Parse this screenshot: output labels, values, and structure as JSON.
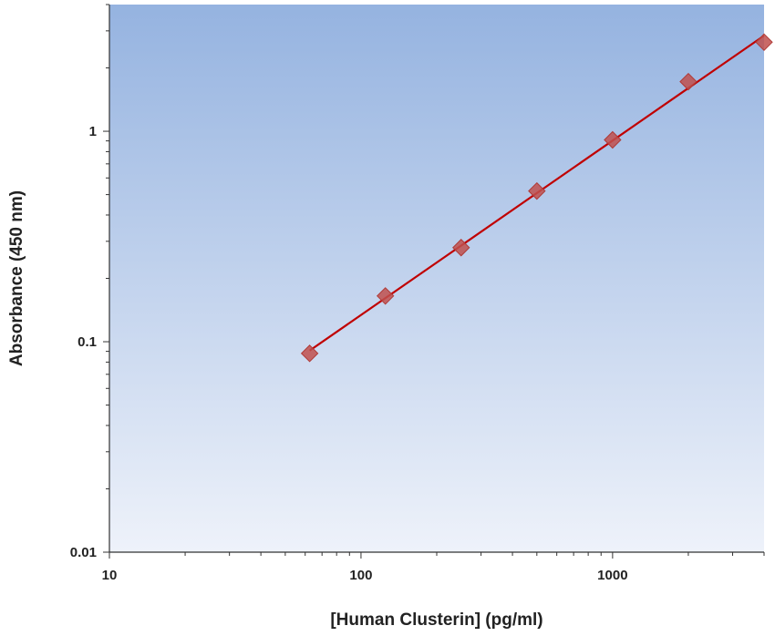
{
  "chart_data": {
    "type": "scatter",
    "title": "",
    "xlabel": "[Human Clusterin] (pg/ml)",
    "ylabel": "Absorbance (450 nm)",
    "x_scale": "log",
    "y_scale": "log",
    "xlim": [
      10,
      4000
    ],
    "ylim": [
      0.01,
      4
    ],
    "x_ticks": [
      10,
      100,
      1000
    ],
    "x_tick_labels": [
      "10",
      "100",
      "1000"
    ],
    "y_ticks": [
      0.01,
      0.1,
      1
    ],
    "y_tick_labels": [
      "0.01",
      "0.1",
      "1"
    ],
    "grid": false,
    "legend": "none",
    "series": [
      {
        "marker": "diamond",
        "color": "#c0504d",
        "x": [
          62.5,
          125,
          250,
          500,
          1000,
          2000,
          4000
        ],
        "y": [
          0.088,
          0.165,
          0.28,
          0.52,
          0.91,
          1.72,
          2.65
        ]
      }
    ],
    "trendline": {
      "type": "power",
      "color": "#c00000"
    },
    "plot_background": {
      "top": "#95b3e0",
      "bottom": "#eef2fa"
    }
  }
}
